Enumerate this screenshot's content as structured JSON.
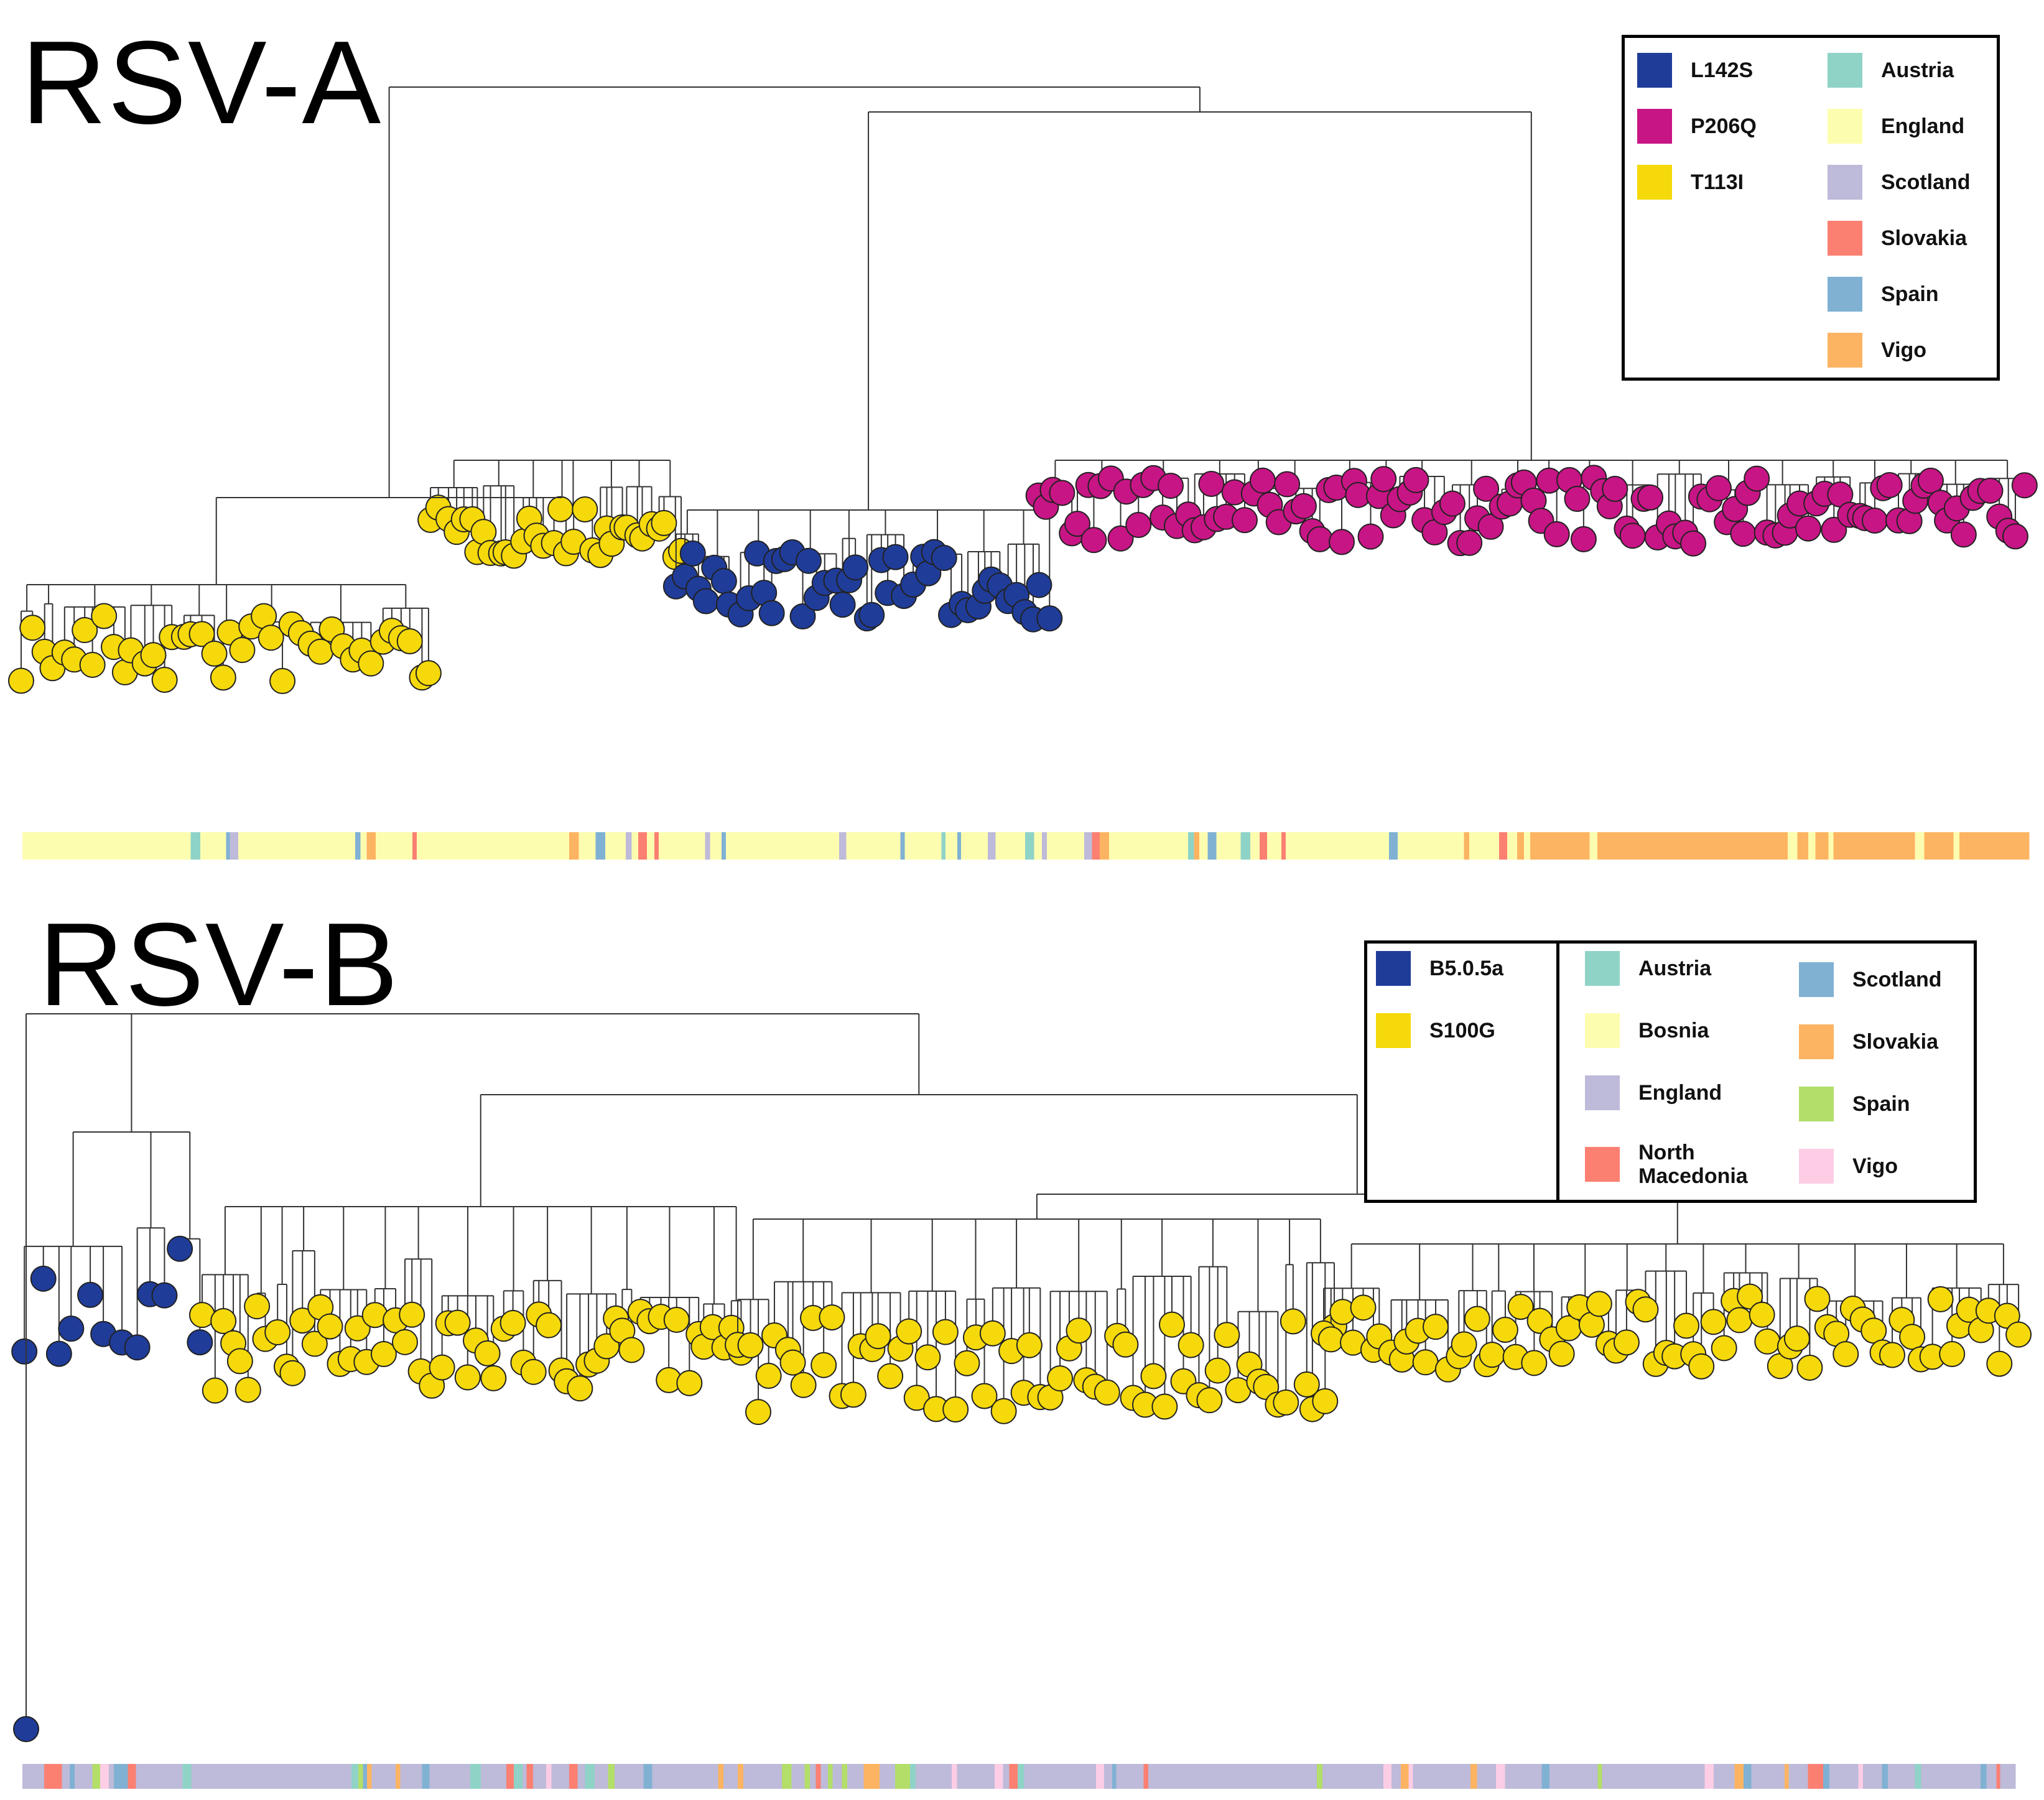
{
  "panels": [
    {
      "id": "rsv-a",
      "title": "RSV-A",
      "legend": {
        "mutations": [
          {
            "label": "L142S",
            "color": "#1f3c99"
          },
          {
            "label": "P206Q",
            "color": "#c71585"
          },
          {
            "label": "T113I",
            "color": "#f5d90a"
          }
        ],
        "countries": [
          {
            "label": "Austria",
            "color": "#8fd3c7"
          },
          {
            "label": "England",
            "color": "#fdfdb0"
          },
          {
            "label": "Scotland",
            "color": "#bebad9"
          },
          {
            "label": "Slovakia",
            "color": "#fb8072"
          },
          {
            "label": "Spain",
            "color": "#80b1d3"
          },
          {
            "label": "Vigo",
            "color": "#fdb462"
          }
        ]
      }
    },
    {
      "id": "rsv-b",
      "title": "RSV-B",
      "legend": {
        "mutations": [
          {
            "label": "B5.0.5a",
            "color": "#1f3c99"
          },
          {
            "label": "S100G",
            "color": "#f5d90a"
          }
        ],
        "countries": [
          {
            "label": "Austria",
            "color": "#8fd3c7"
          },
          {
            "label": "Bosnia",
            "color": "#fdfdb0"
          },
          {
            "label": "England",
            "color": "#bebad9"
          },
          {
            "label": "North\nMacedonia",
            "color": "#fb8072"
          },
          {
            "label": "Scotland",
            "color": "#80b1d3"
          },
          {
            "label": "Slovakia",
            "color": "#fdb462"
          },
          {
            "label": "Spain",
            "color": "#b3de69"
          },
          {
            "label": "Vigo",
            "color": "#fccde5"
          }
        ]
      }
    }
  ]
}
